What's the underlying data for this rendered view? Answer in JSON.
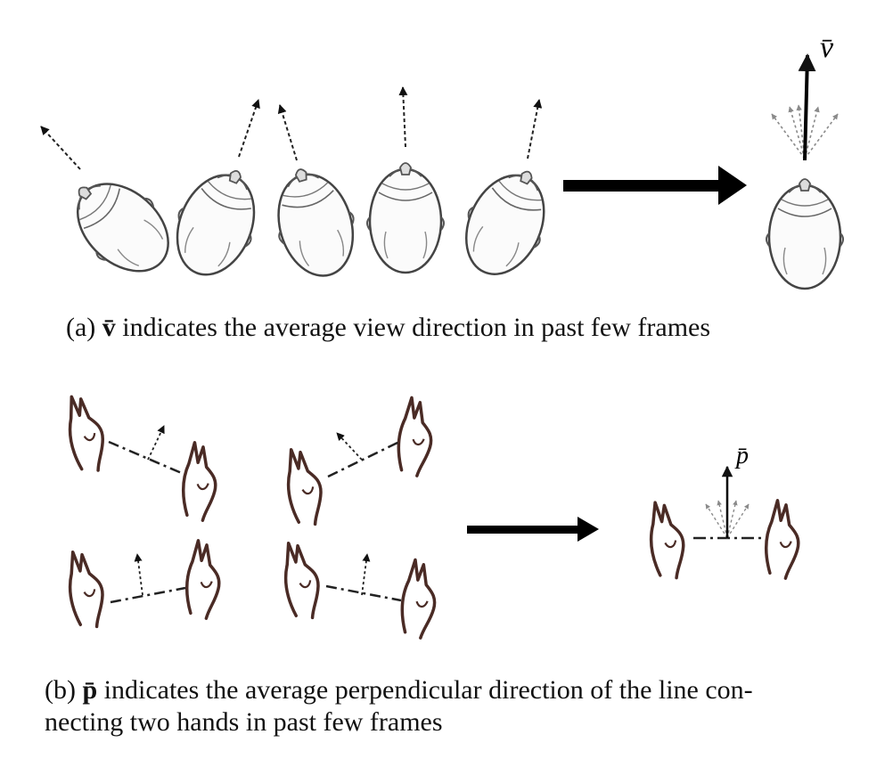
{
  "caption_a": {
    "prefix": "(a)",
    "symbol": "v̄",
    "text": "indicates the average view direction in past few frames"
  },
  "caption_b": {
    "prefix": "(b)",
    "symbol": "p̄",
    "text_line1": "indicates the average perpendicular direction of the line con-",
    "text_line2": "necting two hands in past few frames"
  },
  "labels": {
    "v_bar": "v̄",
    "p_bar": "p̄"
  },
  "colors": {
    "stroke": "#222222",
    "hand": "#4a2b25",
    "faint_arrow": "#8a8a8a"
  }
}
